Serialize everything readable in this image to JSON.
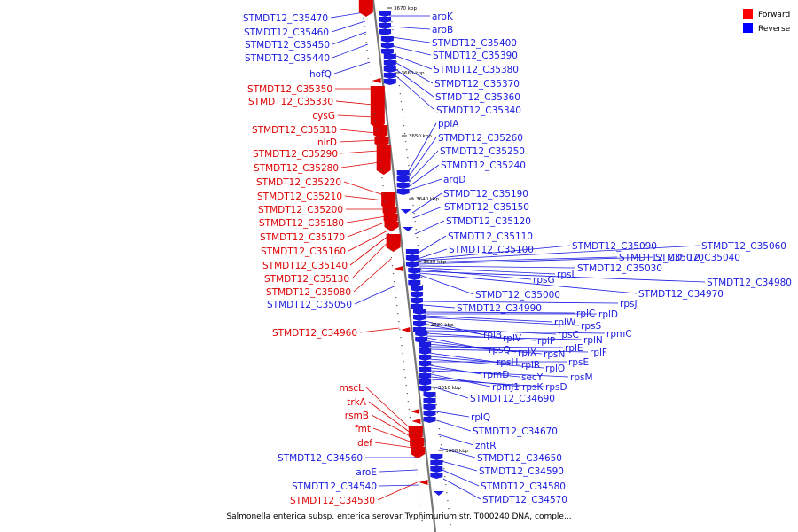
{
  "caption": "Salmonella enterica subsp. enterica serovar Typhimurium str. T000240 DNA, comple...",
  "legend": [
    {
      "label": "Forward",
      "color": "#ff0000"
    },
    {
      "label": "Reverse",
      "color": "#0000ff"
    }
  ],
  "colors": {
    "forward": "#dd0000",
    "reverse": "#1b1be0",
    "backbone": "#777777"
  },
  "ticks": [
    "3670 kbp",
    "3660 kbp",
    "3650 kbp",
    "3640 kbp",
    "3630 kbp",
    "3620 kbp",
    "3610 kbp",
    "3600 kbp"
  ],
  "forward_labels": [
    "STMDT12_C35350",
    "STMDT12_C35330",
    "cysG",
    "STMDT12_C35310",
    "nirD",
    "STMDT12_C35290",
    "STMDT12_C35280",
    "STMDT12_C35220",
    "STMDT12_C35210",
    "STMDT12_C35200",
    "STMDT12_C35180",
    "STMDT12_C35170",
    "STMDT12_C35160",
    "STMDT12_C35140",
    "STMDT12_C35130",
    "STMDT12_C35080",
    "STMDT12_C34960",
    "mscL",
    "trkA",
    "rsmB",
    "fmt",
    "def",
    "STMDT12_C34530"
  ],
  "reverse_labels_left": [
    "STMDT12_C35470",
    "STMDT12_C35460",
    "STMDT12_C35450",
    "STMDT12_C35440",
    "hofQ",
    "STMDT12_C35050",
    "STMDT12_C34560",
    "aroE",
    "STMDT12_C34540"
  ],
  "reverse_labels_right": [
    "aroK",
    "aroB",
    "STMDT12_C35400",
    "STMDT12_C35390",
    "STMDT12_C35380",
    "STMDT12_C35370",
    "STMDT12_C35360",
    "STMDT12_C35340",
    "ppiA",
    "STMDT12_C35260",
    "STMDT12_C35250",
    "STMDT12_C35240",
    "argD",
    "STMDT12_C35190",
    "STMDT12_C35150",
    "STMDT12_C35120",
    "STMDT12_C35110",
    "STMDT12_C35100",
    "STMDT12_C35090",
    "STMDT12_C35060",
    "STMDT12_C35070",
    "STMDT12_C35040",
    "STMDT12_C35030",
    "rpsL",
    "rpsG",
    "STMDT12_C34980",
    "STMDT12_C34970",
    "STMDT12_C35000",
    "rpsJ",
    "STMDT12_C34990",
    "rplC",
    "rplD",
    "rplW",
    "rpsS",
    "rplB",
    "rplV",
    "rpsC",
    "rpmC",
    "rplP",
    "rplN",
    "rpsQ",
    "rplX",
    "rpsN",
    "rplE",
    "rplF",
    "rpsH",
    "rplR",
    "rplO",
    "rpsE",
    "rpmD",
    "secY",
    "rpsM",
    "rpmJ1",
    "rpsK",
    "rpsD",
    "STMDT12_C34690",
    "rplQ",
    "STMDT12_C34670",
    "zntR",
    "STMDT12_C34650",
    "STMDT12_C34590",
    "STMDT12_C34580",
    "STMDT12_C34570"
  ]
}
